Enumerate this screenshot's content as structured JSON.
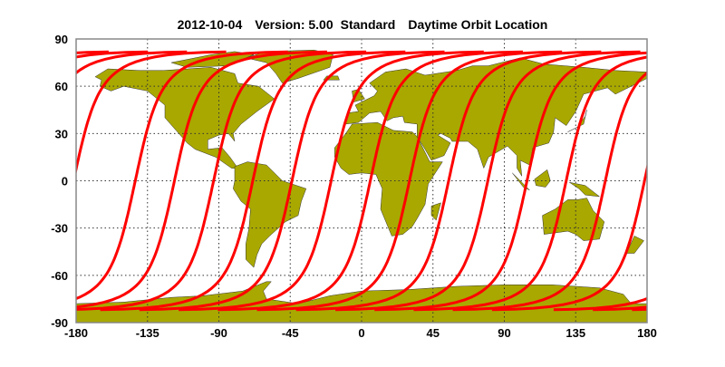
{
  "title": {
    "date": "2012-10-04",
    "version": "Version: 5.00",
    "product": "Standard",
    "subject": "Daytime Orbit Location"
  },
  "axes": {
    "x_ticks": [
      -180,
      -135,
      -90,
      -45,
      0,
      45,
      90,
      135,
      180
    ],
    "y_ticks": [
      90,
      60,
      30,
      0,
      -30,
      -60,
      -90
    ],
    "xlim": [
      -180,
      180
    ],
    "ylim": [
      -90,
      90
    ],
    "grid": "dotted"
  },
  "orbit": {
    "direction": "descending",
    "equator_crossings_lon": [
      -142.7,
      -118.0,
      -93.3,
      -68.6,
      -43.9,
      -19.2,
      5.5,
      30.2,
      54.9,
      79.6,
      104.3,
      129.0,
      153.7,
      178.4
    ]
  },
  "colors": {
    "land": "#a9a800",
    "track": "#ff0000",
    "frame": "#888888"
  }
}
